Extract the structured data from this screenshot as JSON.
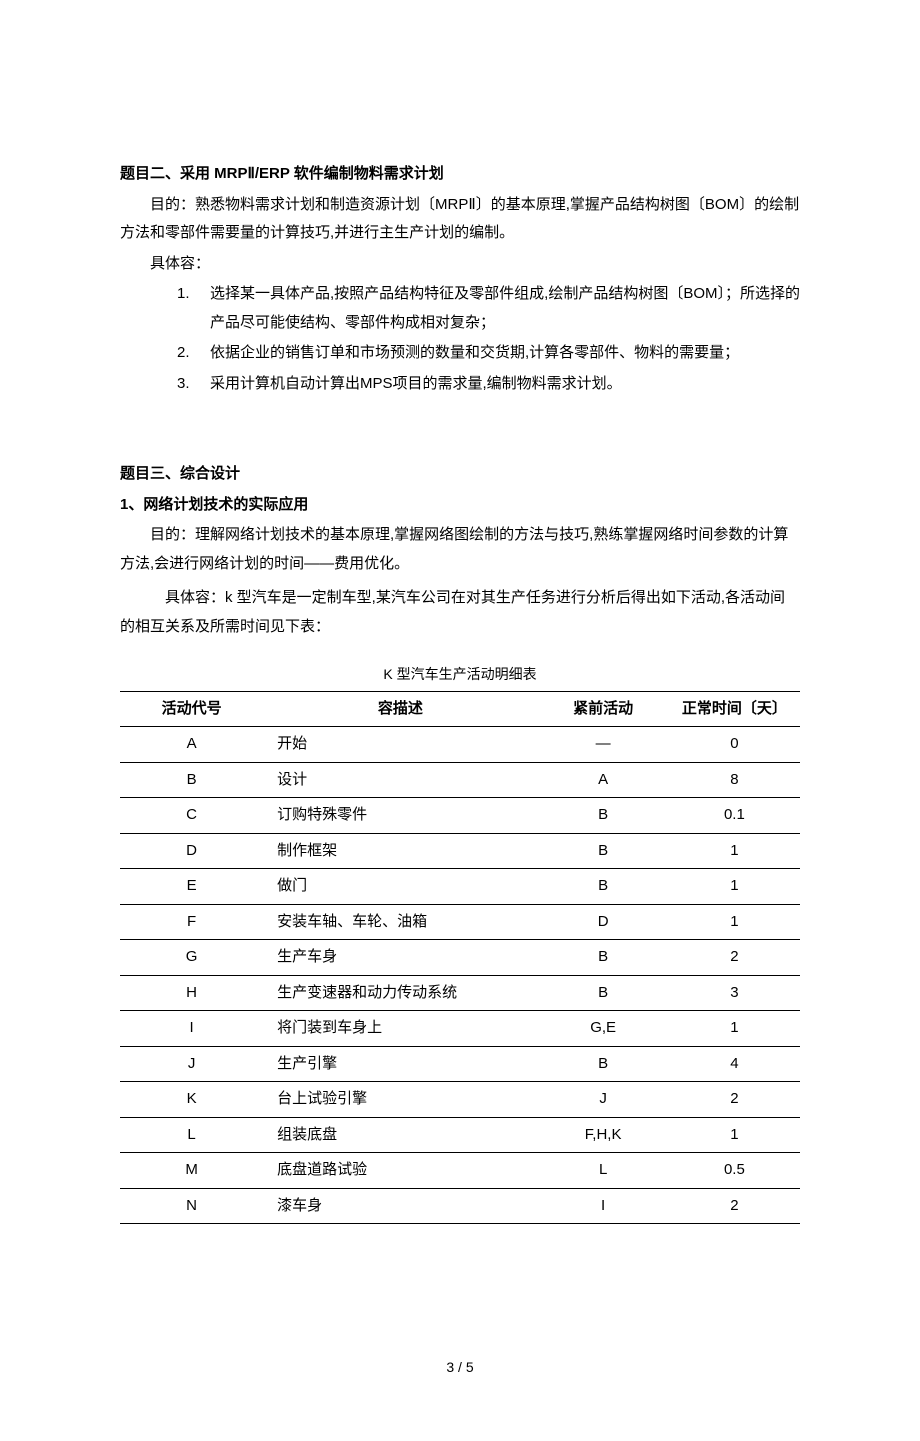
{
  "section2": {
    "heading": "题目二、采用 MRPⅡ/ERP 软件编制物料需求计划",
    "purpose_label": "目的：",
    "purpose_text": "熟悉物料需求计划和制造资源计划〔MRPⅡ〕的基本原理,掌握产品结构树图〔BOM〕的绘制方法和零部件需要量的计算技巧,并进行主生产计划的编制。",
    "content_label": "具体容：",
    "items": [
      {
        "num": "1.",
        "text": "选择某一具体产品,按照产品结构特征及零部件组成,绘制产品结构树图〔BOM〕；所选择的产品尽可能使结构、零部件构成相对复杂；"
      },
      {
        "num": "2.",
        "text": "依据企业的销售订单和市场预测的数量和交货期,计算各零部件、物料的需要量；"
      },
      {
        "num": "3.",
        "text": "采用计算机自动计算出MPS项目的需求量,编制物料需求计划。"
      }
    ]
  },
  "section3": {
    "heading": "题目三、综合设计",
    "sub_heading": "1、网络计划技术的实际应用",
    "purpose_label": "目的：",
    "purpose_text": "理解网络计划技术的基本原理,掌握网络图绘制的方法与技巧,熟练掌握网络时间参数的计算方法,会进行网络计划的时间——费用优化。",
    "content_label": "具体容：",
    "content_text": "k 型汽车是一定制车型,某汽车公司在对其生产任务进行分析后得出如下活动,各活动间的相互关系及所需时间见下表："
  },
  "table": {
    "caption": "K 型汽车生产活动明细表",
    "headers": [
      "活动代号",
      "容描述",
      "紧前活动",
      "正常时间〔天〕"
    ],
    "rows": [
      {
        "code": "A",
        "desc": "开始",
        "pred": "—",
        "time": "0"
      },
      {
        "code": "B",
        "desc": "设计",
        "pred": "A",
        "time": "8"
      },
      {
        "code": "C",
        "desc": "订购特殊零件",
        "pred": "B",
        "time": "0.1"
      },
      {
        "code": "D",
        "desc": "制作框架",
        "pred": "B",
        "time": "1"
      },
      {
        "code": "E",
        "desc": "做门",
        "pred": "B",
        "time": "1"
      },
      {
        "code": "F",
        "desc": "安装车轴、车轮、油箱",
        "pred": "D",
        "time": "1"
      },
      {
        "code": "G",
        "desc": "生产车身",
        "pred": "B",
        "time": "2"
      },
      {
        "code": "H",
        "desc": "生产变速器和动力传动系统",
        "pred": "B",
        "time": "3"
      },
      {
        "code": "I",
        "desc": "将门装到车身上",
        "pred": "G,E",
        "time": "1"
      },
      {
        "code": "J",
        "desc": "生产引擎",
        "pred": "B",
        "time": "4"
      },
      {
        "code": "K",
        "desc": "台上试验引擎",
        "pred": "J",
        "time": "2"
      },
      {
        "code": "L",
        "desc": "组装底盘",
        "pred": "F,H,K",
        "time": "1"
      },
      {
        "code": "M",
        "desc": "底盘道路试验",
        "pred": "L",
        "time": "0.5"
      },
      {
        "code": "N",
        "desc": "漆车身",
        "pred": "I",
        "time": "2"
      }
    ]
  },
  "footer": {
    "page": "3 / 5"
  }
}
